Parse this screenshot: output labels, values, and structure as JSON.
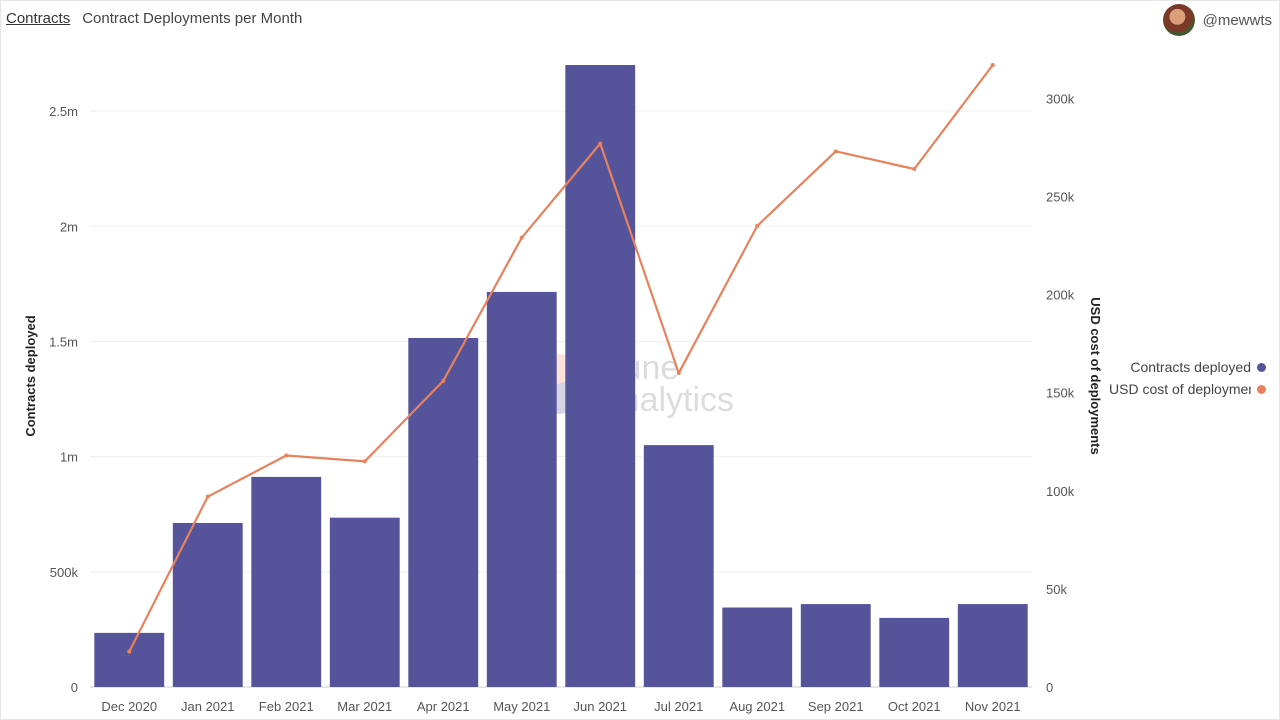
{
  "header": {
    "breadcrumb": "Contracts",
    "title": "Contract Deployments per Month"
  },
  "user": {
    "handle": "@mewwts",
    "icon": "avatar-icon"
  },
  "watermark": {
    "line1": "Dune",
    "line2": "Analytics"
  },
  "colors": {
    "bars": "#55539a",
    "line": "#e8825d",
    "grid": "#efefef"
  },
  "chart_data": {
    "type": "bar",
    "categories": [
      "Dec 2020",
      "Jan 2021",
      "Feb 2021",
      "Mar 2021",
      "Apr 2021",
      "May 2021",
      "Jun 2021",
      "Jul 2021",
      "Aug 2021",
      "Sep 2021",
      "Oct 2021",
      "Nov 2021"
    ],
    "y_left": {
      "label": "Contracts deployed",
      "range": [
        0,
        2700000
      ],
      "ticks": [
        0,
        500000,
        1000000,
        1500000,
        2000000,
        2500000
      ],
      "tick_labels": [
        "0",
        "500k",
        "1m",
        "1.5m",
        "2m",
        "2.5m"
      ]
    },
    "y_right": {
      "label": "USD cost of deployments",
      "range": [
        0,
        317000
      ],
      "ticks": [
        0,
        50000,
        100000,
        150000,
        200000,
        250000,
        300000
      ],
      "tick_labels": [
        "0",
        "50k",
        "100k",
        "150k",
        "200k",
        "250k",
        "300k"
      ]
    },
    "series": [
      {
        "name": "Contracts deployed",
        "type": "bar",
        "axis": "left",
        "values": [
          235000,
          712000,
          912000,
          735000,
          1515000,
          1715000,
          2700000,
          1050000,
          345000,
          360000,
          300000,
          360000
        ]
      },
      {
        "name": "USD cost of deployments",
        "type": "line",
        "axis": "right",
        "values": [
          18000,
          97000,
          118000,
          115000,
          156000,
          229000,
          277000,
          160000,
          235000,
          273000,
          264000,
          317000
        ]
      }
    ],
    "legend": {
      "position": "right",
      "items": [
        "Contracts deployed",
        "USD cost of deployments"
      ]
    },
    "grid": true
  }
}
